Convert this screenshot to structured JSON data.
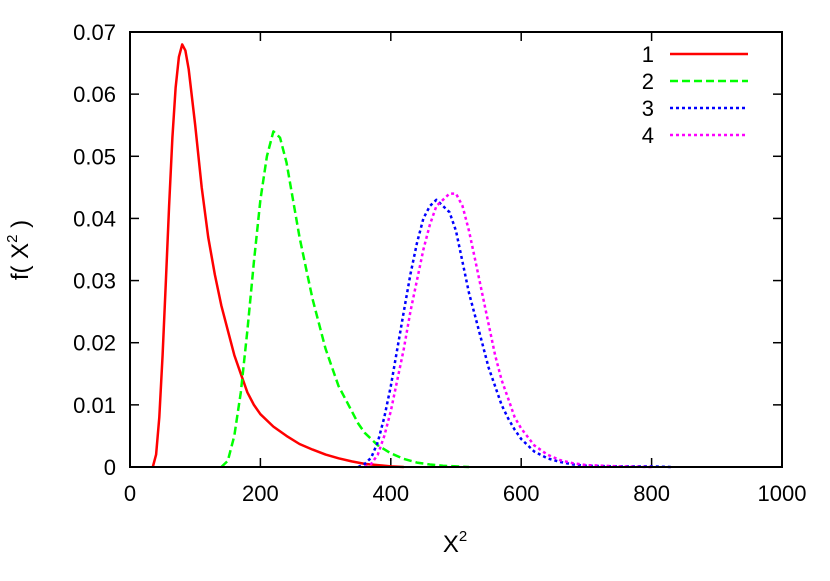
{
  "chart_data": {
    "type": "line",
    "title": "",
    "xlabel": {
      "base": "X",
      "sup": "2"
    },
    "ylabel": {
      "prefix": "f( X",
      "sup": "2",
      "suffix": " )"
    },
    "xlim": [
      0,
      1000
    ],
    "ylim": [
      0,
      0.07
    ],
    "x_ticks": [
      0,
      200,
      400,
      600,
      800,
      1000
    ],
    "x_tick_labels": [
      "0",
      "200",
      "400",
      "600",
      "800",
      "1000"
    ],
    "y_ticks": [
      0,
      0.01,
      0.02,
      0.03,
      0.04,
      0.05,
      0.06,
      0.07
    ],
    "y_tick_labels": [
      "0",
      "0.01",
      "0.02",
      "0.03",
      "0.04",
      "0.05",
      "0.06",
      "0.07"
    ],
    "grid": false,
    "legend_position": "top-right",
    "series": [
      {
        "name": "1",
        "color": "#ff0000",
        "dash": "solid",
        "points": [
          [
            35,
            0
          ],
          [
            40,
            0.002
          ],
          [
            45,
            0.008
          ],
          [
            50,
            0.018
          ],
          [
            55,
            0.03
          ],
          [
            60,
            0.042
          ],
          [
            65,
            0.053
          ],
          [
            70,
            0.061
          ],
          [
            75,
            0.066
          ],
          [
            80,
            0.068
          ],
          [
            85,
            0.067
          ],
          [
            90,
            0.064
          ],
          [
            100,
            0.055
          ],
          [
            110,
            0.045
          ],
          [
            120,
            0.037
          ],
          [
            130,
            0.031
          ],
          [
            140,
            0.026
          ],
          [
            150,
            0.022
          ],
          [
            160,
            0.018
          ],
          [
            170,
            0.015
          ],
          [
            180,
            0.012
          ],
          [
            190,
            0.01
          ],
          [
            200,
            0.0085
          ],
          [
            220,
            0.0065
          ],
          [
            240,
            0.005
          ],
          [
            260,
            0.0037
          ],
          [
            280,
            0.0028
          ],
          [
            300,
            0.002
          ],
          [
            320,
            0.0014
          ],
          [
            340,
            0.0009
          ],
          [
            360,
            0.0005
          ],
          [
            380,
            0.0003
          ],
          [
            400,
            0.0001
          ],
          [
            420,
            0
          ]
        ]
      },
      {
        "name": "2",
        "color": "#00ff00",
        "dash": "dashed",
        "points": [
          [
            140,
            0
          ],
          [
            150,
            0.001
          ],
          [
            160,
            0.005
          ],
          [
            170,
            0.012
          ],
          [
            180,
            0.022
          ],
          [
            190,
            0.033
          ],
          [
            200,
            0.043
          ],
          [
            210,
            0.05
          ],
          [
            220,
            0.054
          ],
          [
            230,
            0.053
          ],
          [
            240,
            0.049
          ],
          [
            250,
            0.043
          ],
          [
            260,
            0.037
          ],
          [
            270,
            0.032
          ],
          [
            280,
            0.027
          ],
          [
            290,
            0.023
          ],
          [
            300,
            0.019
          ],
          [
            310,
            0.016
          ],
          [
            320,
            0.013
          ],
          [
            330,
            0.011
          ],
          [
            340,
            0.009
          ],
          [
            350,
            0.007
          ],
          [
            360,
            0.0055
          ],
          [
            380,
            0.0035
          ],
          [
            400,
            0.0022
          ],
          [
            420,
            0.0013
          ],
          [
            440,
            0.0007
          ],
          [
            460,
            0.0004
          ],
          [
            480,
            0.0002
          ],
          [
            520,
            0
          ]
        ]
      },
      {
        "name": "3",
        "color": "#0000ff",
        "dash": "dotted",
        "points": [
          [
            350,
            0
          ],
          [
            360,
            0.0005
          ],
          [
            370,
            0.0015
          ],
          [
            380,
            0.004
          ],
          [
            390,
            0.008
          ],
          [
            400,
            0.013
          ],
          [
            410,
            0.019
          ],
          [
            420,
            0.025
          ],
          [
            430,
            0.031
          ],
          [
            440,
            0.036
          ],
          [
            450,
            0.04
          ],
          [
            460,
            0.042
          ],
          [
            470,
            0.043
          ],
          [
            480,
            0.042
          ],
          [
            490,
            0.041
          ],
          [
            500,
            0.038
          ],
          [
            510,
            0.033
          ],
          [
            520,
            0.028
          ],
          [
            530,
            0.024
          ],
          [
            540,
            0.02
          ],
          [
            550,
            0.016
          ],
          [
            560,
            0.013
          ],
          [
            570,
            0.01
          ],
          [
            580,
            0.0078
          ],
          [
            590,
            0.006
          ],
          [
            600,
            0.0045
          ],
          [
            620,
            0.0025
          ],
          [
            640,
            0.0014
          ],
          [
            660,
            0.0008
          ],
          [
            680,
            0.0004
          ],
          [
            700,
            0.0002
          ],
          [
            750,
            0.0001
          ],
          [
            800,
            0.0001
          ],
          [
            830,
            0
          ]
        ]
      },
      {
        "name": "4",
        "color": "#ff00ff",
        "dash": "dotted",
        "points": [
          [
            360,
            0
          ],
          [
            370,
            0.0005
          ],
          [
            380,
            0.002
          ],
          [
            390,
            0.005
          ],
          [
            400,
            0.009
          ],
          [
            410,
            0.014
          ],
          [
            420,
            0.019
          ],
          [
            430,
            0.025
          ],
          [
            440,
            0.03
          ],
          [
            450,
            0.035
          ],
          [
            460,
            0.039
          ],
          [
            470,
            0.042
          ],
          [
            480,
            0.043
          ],
          [
            490,
            0.044
          ],
          [
            500,
            0.044
          ],
          [
            510,
            0.042
          ],
          [
            520,
            0.038
          ],
          [
            530,
            0.033
          ],
          [
            540,
            0.028
          ],
          [
            550,
            0.023
          ],
          [
            560,
            0.018
          ],
          [
            570,
            0.014
          ],
          [
            580,
            0.011
          ],
          [
            590,
            0.008
          ],
          [
            600,
            0.0062
          ],
          [
            620,
            0.0035
          ],
          [
            640,
            0.002
          ],
          [
            660,
            0.0011
          ],
          [
            680,
            0.0006
          ],
          [
            700,
            0.0003
          ],
          [
            750,
            0.0001
          ],
          [
            800,
            0
          ]
        ]
      }
    ]
  }
}
